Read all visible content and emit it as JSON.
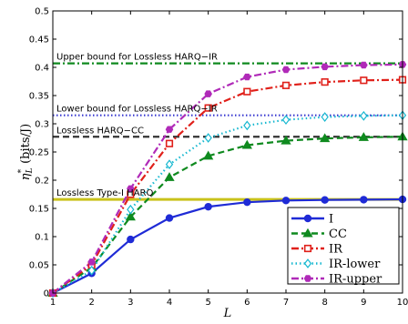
{
  "chart_data": {
    "type": "line",
    "xlabel": "L",
    "ylabel": "η",
    "ylabel_sub": "L",
    "ylabel_sup": "*",
    "ylabel_unit": "(bits/J)",
    "xlim": [
      1,
      10
    ],
    "ylim": [
      0,
      0.5
    ],
    "xticks": [
      1,
      2,
      3,
      4,
      5,
      6,
      7,
      8,
      9,
      10
    ],
    "yticks": [
      0,
      0.05,
      0.1,
      0.15,
      0.2,
      0.25,
      0.3,
      0.35,
      0.4,
      0.45,
      0.5
    ],
    "ytick_labels": [
      "0",
      "0.05",
      "0.1",
      "0.15",
      "0.2",
      "0.25",
      "0.3",
      "0.35",
      "0.4",
      "0.45",
      "0.5"
    ],
    "grid": false,
    "legend_position": "bottom-right",
    "x": [
      1,
      2,
      3,
      4,
      5,
      6,
      7,
      8,
      9,
      10
    ],
    "series": [
      {
        "name": "I",
        "values": [
          0.0,
          0.035,
          0.095,
          0.133,
          0.153,
          0.161,
          0.164,
          0.165,
          0.1655,
          0.166
        ],
        "color": "#1f2bd6",
        "dash": "",
        "marker": "circle"
      },
      {
        "name": "CC",
        "values": [
          0.0,
          0.045,
          0.135,
          0.205,
          0.243,
          0.262,
          0.27,
          0.274,
          0.276,
          0.277
        ],
        "color": "#0f8a1f",
        "dash": "7,4",
        "marker": "triangle"
      },
      {
        "name": "IR",
        "values": [
          0.0,
          0.05,
          0.175,
          0.265,
          0.328,
          0.357,
          0.368,
          0.374,
          0.377,
          0.378
        ],
        "color": "#e0201a",
        "dash": "8,3,2,3",
        "marker": "square"
      },
      {
        "name": "IR-lower",
        "values": [
          0.0,
          0.04,
          0.148,
          0.228,
          0.275,
          0.297,
          0.307,
          0.312,
          0.314,
          0.315
        ],
        "color": "#17b8d0",
        "dash": "1.5,3",
        "marker": "diamond"
      },
      {
        "name": "IR-upper",
        "values": [
          0.0,
          0.055,
          0.185,
          0.29,
          0.353,
          0.383,
          0.396,
          0.401,
          0.404,
          0.405
        ],
        "color": "#b02ab8",
        "dash": "8,3,2,3",
        "marker": "hexagon"
      }
    ],
    "reference_lines": [
      {
        "label": "Upper bound for Lossless HARQ−IR",
        "y": 0.407,
        "color": "#0f8a1f",
        "dash": "8,3,2,3"
      },
      {
        "label": "Lower bound for Lossless HARQ−IR",
        "y": 0.315,
        "color": "#3a3ad0",
        "dash": "1.5,2.5"
      },
      {
        "label": "Lossless HARQ−CC",
        "y": 0.277,
        "color": "#333333",
        "dash": "7,4"
      },
      {
        "label": "Lossless Type-I HARQ",
        "y": 0.166,
        "color": "#c9c21a",
        "dash": ""
      }
    ]
  }
}
